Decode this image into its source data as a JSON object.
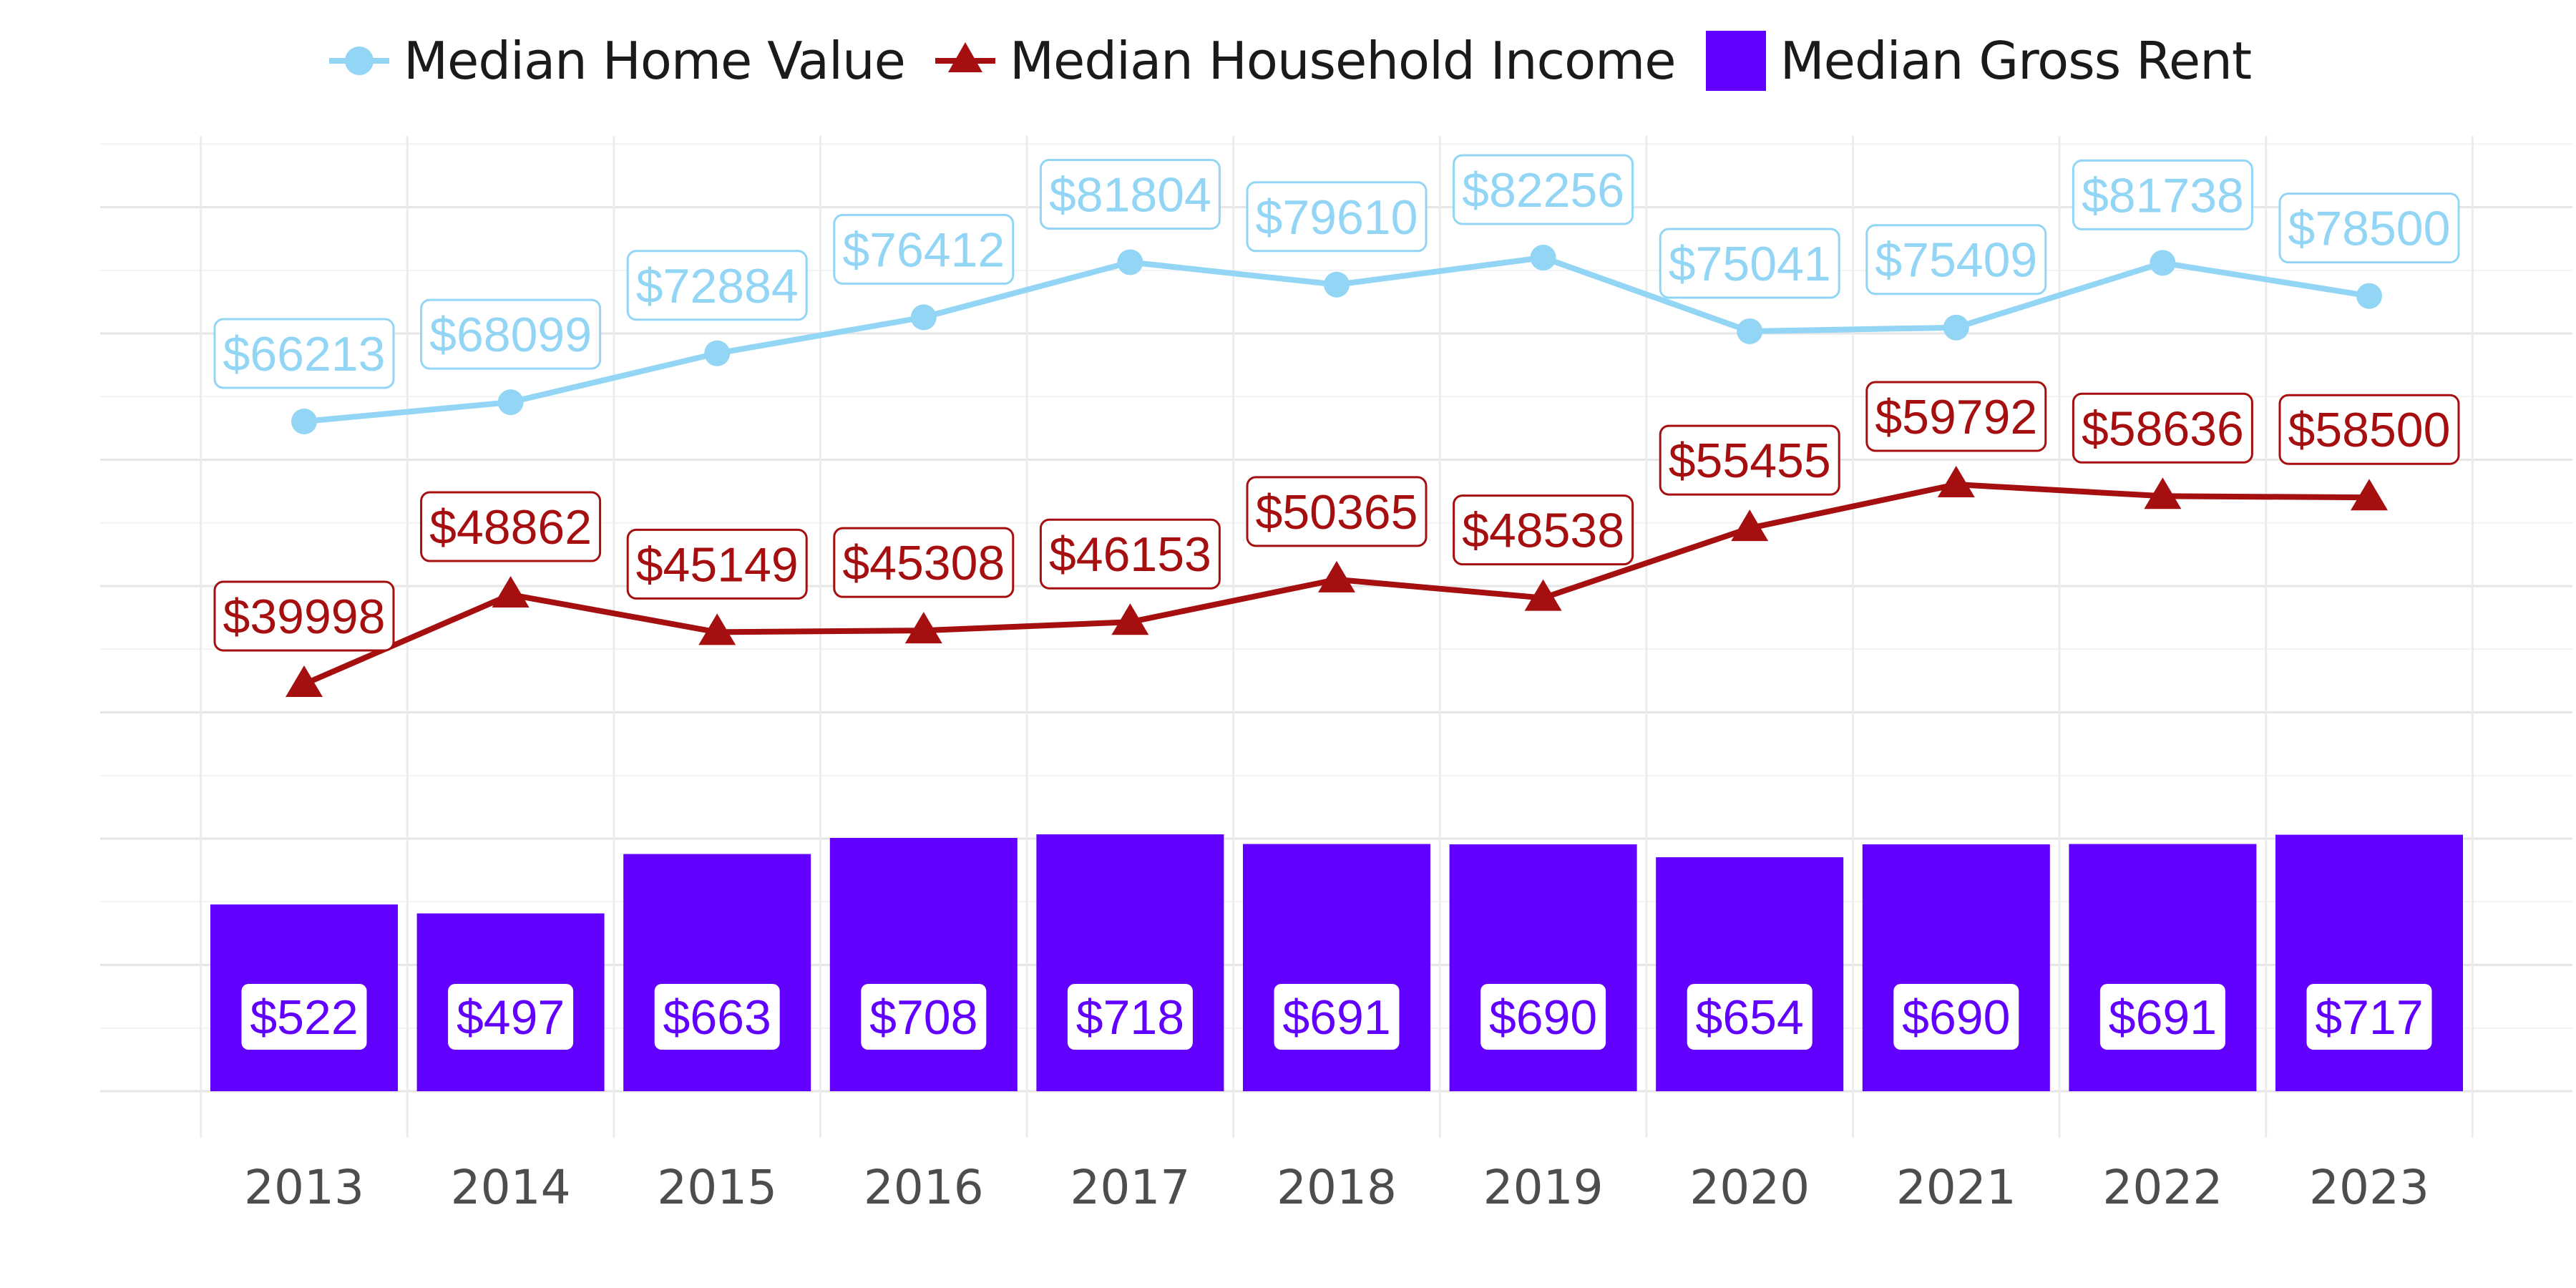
{
  "chart_data": {
    "type": "bar",
    "categories": [
      "2013",
      "2014",
      "2015",
      "2016",
      "2017",
      "2018",
      "2019",
      "2020",
      "2021",
      "2022",
      "2023"
    ],
    "series": [
      {
        "name": "Median Home Value",
        "kind": "line",
        "marker": "circle",
        "color": "#92D5F5",
        "values": [
          66213,
          68099,
          72884,
          76412,
          81804,
          79610,
          82256,
          75041,
          75409,
          81738,
          78500
        ],
        "labels": [
          "$66213",
          "$68099",
          "$72884",
          "$76412",
          "$81804",
          "$79610",
          "$82256",
          "$75041",
          "$75409",
          "$81738",
          "$78500"
        ]
      },
      {
        "name": "Median Household Income",
        "kind": "line",
        "marker": "triangle",
        "color": "#A50F0F",
        "values": [
          39998,
          48862,
          45149,
          45308,
          46153,
          50365,
          48538,
          55455,
          59792,
          58636,
          58500
        ],
        "labels": [
          "$39998",
          "$48862",
          "$45149",
          "$45308",
          "$46153",
          "$50365",
          "$48538",
          "$55455",
          "$59792",
          "$58636",
          "$58500"
        ]
      },
      {
        "name": "Median Gross Rent",
        "kind": "bar",
        "color": "#6200FF",
        "values": [
          522,
          497,
          663,
          708,
          718,
          691,
          690,
          654,
          690,
          691,
          717
        ],
        "labels": [
          "$522",
          "$497",
          "$663",
          "$708",
          "$718",
          "$691",
          "$690",
          "$654",
          "$690",
          "$691",
          "$717"
        ]
      }
    ],
    "title": "",
    "xlabel": "",
    "ylabel": "",
    "y_axis_visible": false,
    "grid": true,
    "legend_position": "top"
  }
}
